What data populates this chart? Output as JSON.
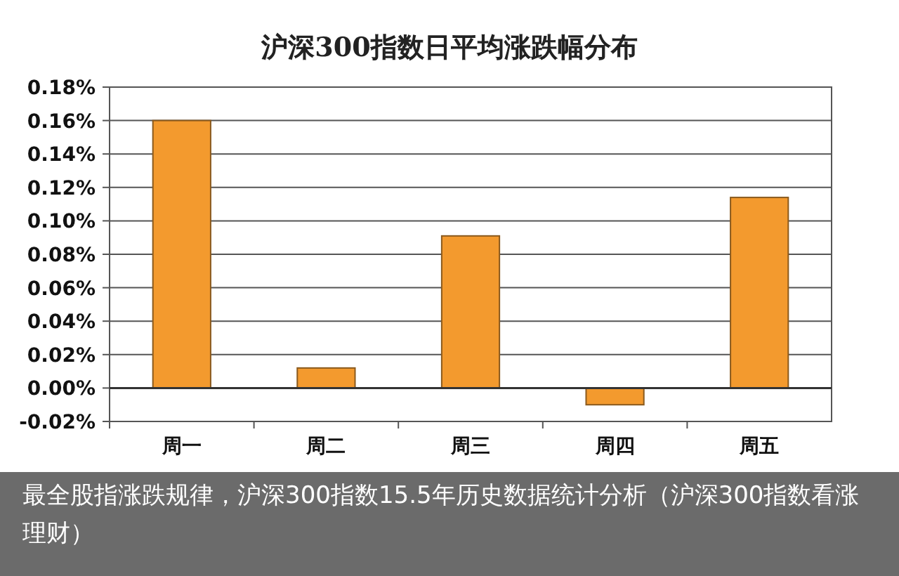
{
  "chart_data": {
    "type": "bar",
    "title": "沪深300指数日平均涨跌幅分布",
    "categories": [
      "周一",
      "周二",
      "周三",
      "周四",
      "周五"
    ],
    "values": [
      0.16,
      0.012,
      0.091,
      -0.01,
      0.114
    ],
    "color": "#f39a2e",
    "ylim": [
      -0.02,
      0.18
    ],
    "yticks": [
      {
        "value": -0.02,
        "label": "-0.02%"
      },
      {
        "value": 0,
        "label": "0.00%"
      },
      {
        "value": 0.02,
        "label": "0.02%"
      },
      {
        "value": 0.04,
        "label": "0.04%"
      },
      {
        "value": 0.06,
        "label": "0.06%"
      },
      {
        "value": 0.08,
        "label": "0.08%"
      },
      {
        "value": 0.1,
        "label": "0.10%"
      },
      {
        "value": 0.12,
        "label": "0.12%"
      },
      {
        "value": 0.14,
        "label": "0.14%"
      },
      {
        "value": 0.16,
        "label": "0.16%"
      },
      {
        "value": 0.18,
        "label": "0.18%"
      }
    ],
    "grid": "y",
    "annotations": [
      "最全股指涨跌规律，沪深300指数15.5年历史数据统计分析（沪深300指数看涨理财）"
    ]
  }
}
